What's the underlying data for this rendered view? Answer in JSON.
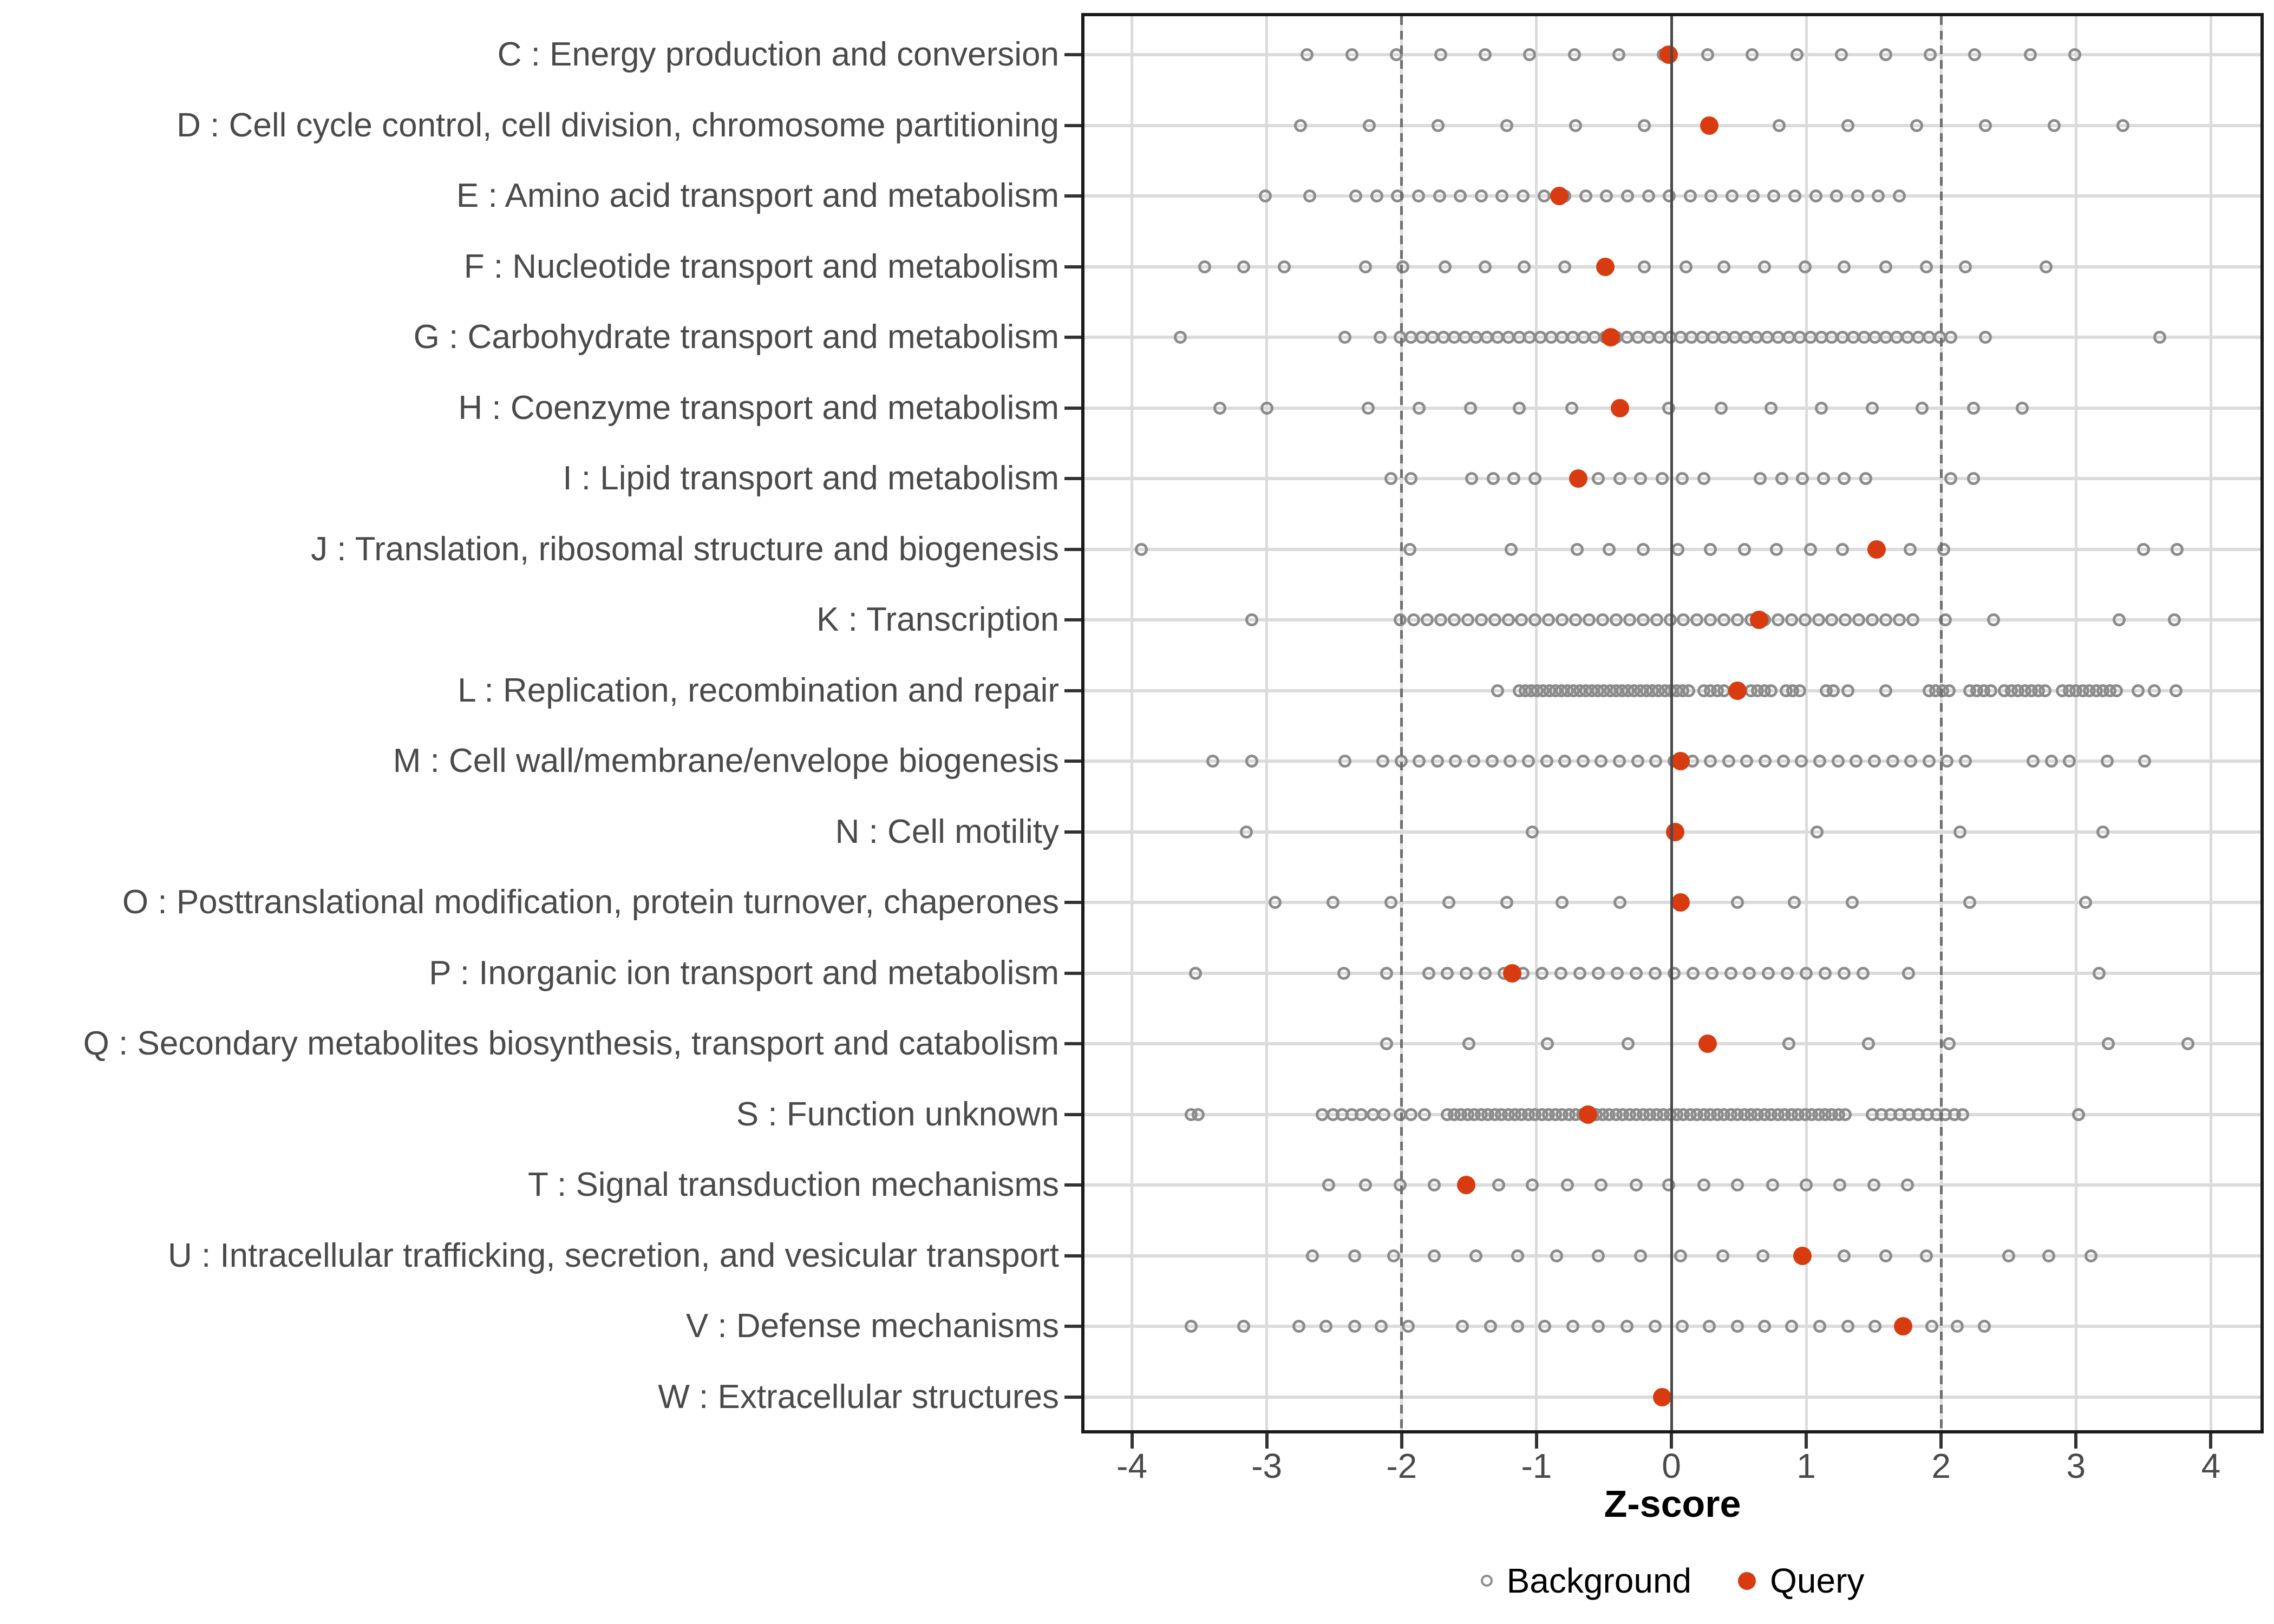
{
  "colors": {
    "query": "#d93b10",
    "background_stroke": "#8c8c8c",
    "grid_light": "#dbdbdb",
    "zero_line": "#4a4a4a",
    "dashed_line": "#6f6f6f",
    "axis_text": "#4a4a4a",
    "panel_border": "#1a1a1a"
  },
  "axis": {
    "x_title": "Z-score"
  },
  "legend": {
    "background_label": "Background",
    "query_label": "Query"
  },
  "chart_data": {
    "type": "scatter",
    "subtype": "dot-strip-plot",
    "title": "",
    "xlabel": "Z-score",
    "ylabel": "",
    "xlim": [
      -4.37,
      4.37
    ],
    "x_ticks": [
      -4,
      -3,
      -2,
      -1,
      0,
      1,
      2,
      3,
      4
    ],
    "grid": true,
    "reference_lines": {
      "solid_at": 0,
      "dashed_at": [
        -2,
        2
      ]
    },
    "legend_position": "bottom",
    "legend_entries": [
      "Background",
      "Query"
    ],
    "series_note": "background = open gray circles (z-scores of background genomes); query = filled red dot; runs encoded as {from,to,step}",
    "categories": [
      {
        "code": "C",
        "label": "C : Energy production and conversion",
        "query": -0.02,
        "background": [
          -2.7,
          -2.37,
          -2.04,
          -1.71,
          -1.38,
          -1.05,
          -0.72,
          -0.39,
          -0.06,
          0.27,
          0.6,
          0.93,
          1.26,
          1.59,
          1.92,
          2.25,
          2.66,
          2.99
        ]
      },
      {
        "code": "D",
        "label": "D : Cell cycle control, cell division, chromosome partitioning",
        "query": 0.28,
        "background": [
          -2.75,
          -2.24,
          -1.73,
          -1.22,
          -0.71,
          -0.2,
          0.8,
          1.31,
          1.82,
          2.33,
          2.84,
          3.35
        ]
      },
      {
        "code": "E",
        "label": "E : Amino acid transport and metabolism",
        "query": -0.83,
        "background": [
          -3.01,
          -2.68,
          {
            "from": -2.34,
            "to": 1.84,
            "step": 0.155
          }
        ]
      },
      {
        "code": "F",
        "label": "F : Nucleotide transport and metabolism",
        "query": -0.49,
        "background": [
          -3.46,
          -3.17,
          -2.87,
          -2.27,
          -1.99,
          -1.68,
          -1.38,
          -1.09,
          -0.79,
          -0.2,
          0.11,
          0.39,
          0.69,
          0.99,
          1.28,
          1.59,
          1.89,
          2.18,
          2.78
        ]
      },
      {
        "code": "G",
        "label": "G : Carbohydrate transport and metabolism",
        "query": -0.45,
        "background": [
          -3.64,
          -2.42,
          -2.16,
          {
            "from": -2.01,
            "to": 2.07,
            "step": 0.08
          },
          2.33,
          3.62
        ]
      },
      {
        "code": "H",
        "label": "H : Coenzyme transport and metabolism",
        "query": -0.38,
        "background": [
          -3.35,
          -3.0,
          -2.25,
          -1.87,
          -1.49,
          -1.13,
          -0.74,
          -0.02,
          0.37,
          0.74,
          1.11,
          1.49,
          1.86,
          2.24,
          2.6
        ]
      },
      {
        "code": "I",
        "label": "I : Lipid transport and metabolism",
        "query": -0.69,
        "background": [
          -2.08,
          -1.93,
          -1.48,
          -1.32,
          -1.17,
          -1.01,
          -0.54,
          -0.38,
          -0.23,
          -0.07,
          0.08,
          0.24,
          0.66,
          0.82,
          0.97,
          1.13,
          1.28,
          1.44,
          2.07,
          2.24
        ]
      },
      {
        "code": "J",
        "label": "J : Translation, ribosomal structure and biogenesis",
        "query": 1.52,
        "background": [
          -3.93,
          -1.94,
          -1.19,
          -0.7,
          -0.46,
          -0.21,
          0.05,
          0.29,
          0.54,
          0.78,
          1.03,
          1.27,
          1.77,
          2.02,
          3.5,
          3.75
        ]
      },
      {
        "code": "K",
        "label": "K : Transcription",
        "query": 0.65,
        "background": [
          -3.11,
          {
            "from": -2.01,
            "to": 1.79,
            "step": 0.1
          },
          2.03,
          2.39,
          3.32,
          3.73
        ]
      },
      {
        "code": "L",
        "label": "L : Replication, recombination and repair",
        "query": 0.49,
        "background": [
          -1.29,
          {
            "from": -1.13,
            "to": 0.16,
            "step": 0.045
          },
          0.24,
          0.29,
          0.34,
          0.39,
          0.59,
          0.64,
          0.69,
          0.74,
          0.85,
          0.9,
          0.95,
          1.15,
          1.2,
          1.31,
          1.59,
          {
            "from": 1.91,
            "to": 2.06,
            "step": 0.05
          },
          {
            "from": 2.21,
            "to": 2.37,
            "step": 0.053
          },
          {
            "from": 2.47,
            "to": 2.77,
            "step": 0.05
          },
          {
            "from": 2.9,
            "to": 3.3,
            "step": 0.05
          },
          3.46,
          3.58,
          3.74
        ]
      },
      {
        "code": "M",
        "label": "M : Cell wall/membrane/envelope biogenesis",
        "query": 0.07,
        "background": [
          -3.4,
          -3.11,
          -2.42,
          {
            "from": -2.14,
            "to": 2.31,
            "step": 0.135
          },
          2.68,
          2.82,
          2.95,
          3.23,
          3.51
        ]
      },
      {
        "code": "N",
        "label": "N : Cell motility",
        "query": 0.03,
        "background": [
          -3.15,
          -1.03,
          1.08,
          2.14,
          3.2
        ]
      },
      {
        "code": "O",
        "label": "O : Posttranslational modification, protein turnover, chaperones",
        "query": 0.07,
        "background": [
          -2.94,
          -2.51,
          -2.08,
          -1.65,
          -1.22,
          -0.81,
          -0.38,
          0.49,
          0.91,
          1.34,
          2.21,
          3.07
        ]
      },
      {
        "code": "P",
        "label": "P : Inorganic ion transport and metabolism",
        "query": -1.18,
        "background": [
          -3.53,
          -2.43,
          -2.11,
          {
            "from": -1.8,
            "to": 1.42,
            "step": 0.14
          },
          1.76,
          3.17
        ]
      },
      {
        "code": "Q",
        "label": "Q : Secondary metabolites biosynthesis, transport and catabolism",
        "query": 0.27,
        "background": [
          -2.11,
          -1.5,
          -0.92,
          -0.32,
          0.87,
          1.46,
          2.06,
          3.24,
          3.83
        ]
      },
      {
        "code": "S",
        "label": "S : Function unknown",
        "query": -0.62,
        "background": [
          -3.56,
          -3.51,
          -2.59,
          -2.51,
          -2.44,
          -2.37,
          -2.3,
          -2.21,
          -2.13,
          -2.01,
          -1.93,
          -1.83,
          {
            "from": -1.66,
            "to": 1.32,
            "step": 0.05
          },
          {
            "from": 1.49,
            "to": 1.97,
            "step": 0.068
          },
          2.03,
          2.1,
          2.16,
          3.02
        ]
      },
      {
        "code": "T",
        "label": "T : Signal transduction mechanisms",
        "query": -1.52,
        "background": [
          -2.54,
          -2.27,
          -2.01,
          -1.76,
          -1.28,
          -1.03,
          -0.77,
          -0.52,
          -0.26,
          -0.02,
          0.24,
          0.49,
          0.75,
          1.0,
          1.25,
          1.5,
          1.75
        ]
      },
      {
        "code": "U",
        "label": "U : Intracellular trafficking, secretion, and vesicular transport",
        "query": 0.97,
        "background": [
          -2.66,
          -2.35,
          -2.06,
          -1.76,
          -1.45,
          -1.14,
          -0.85,
          -0.54,
          -0.23,
          0.07,
          0.38,
          0.68,
          1.28,
          1.59,
          1.89,
          2.5,
          2.8,
          3.11
        ]
      },
      {
        "code": "V",
        "label": "V : Defense mechanisms",
        "query": 1.72,
        "background": [
          -3.56,
          -3.17,
          -2.76,
          -2.56,
          -2.35,
          -2.15,
          -1.95,
          -1.55,
          -1.34,
          -1.14,
          -0.94,
          -0.73,
          -0.54,
          -0.33,
          -0.12,
          0.08,
          0.28,
          0.49,
          0.69,
          0.89,
          1.1,
          1.31,
          1.51,
          1.93,
          2.12,
          2.32
        ]
      },
      {
        "code": "W",
        "label": "W : Extracellular structures",
        "query": -0.07,
        "background": []
      }
    ]
  }
}
